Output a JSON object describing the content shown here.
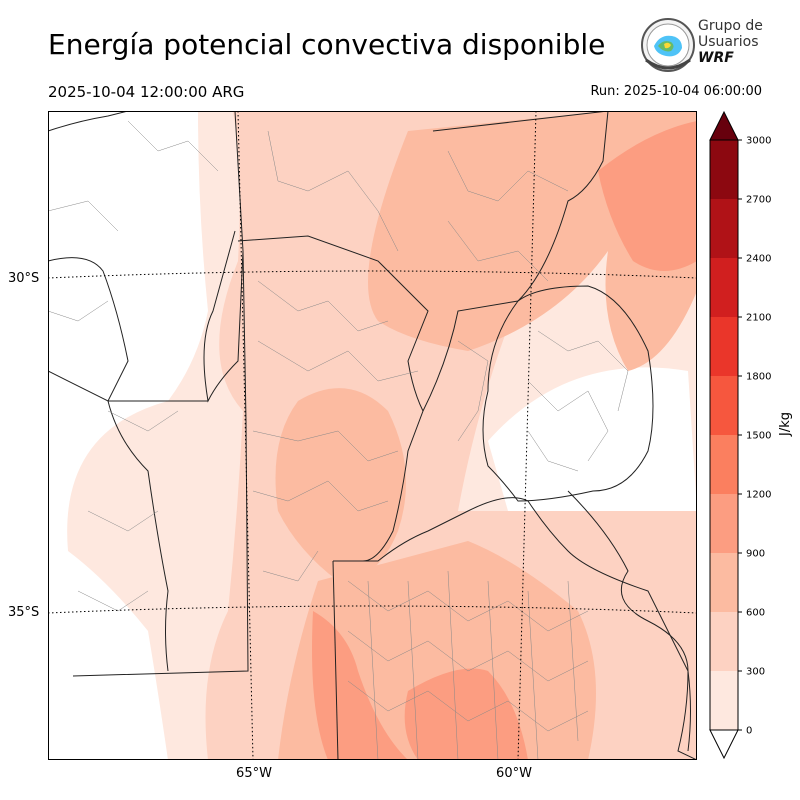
{
  "title": "Energía potencial convectiva disponible",
  "valid_time": "2025-10-04 12:00:00 ARG",
  "run_time": "Run: 2025-10-04 06:00:00",
  "logo": {
    "line1": "Grupo de",
    "line2": "Usuarios",
    "line3": "WRF"
  },
  "lat_labels": [
    "30°S",
    "35°S"
  ],
  "lon_labels": [
    "65°W",
    "60°W"
  ],
  "colorbar": {
    "unit": "J/kg",
    "ticks": [
      "0",
      "300",
      "600",
      "900",
      "1200",
      "1500",
      "1800",
      "2100",
      "2400",
      "2700",
      "3000"
    ],
    "colors": [
      "#fee8df",
      "#fdd2c2",
      "#fcbba1",
      "#fc9d81",
      "#fb7f5f",
      "#f6573e",
      "#ea362a",
      "#d11f1f",
      "#b01217",
      "#8c0810"
    ],
    "extend_color": "#67000d"
  }
}
